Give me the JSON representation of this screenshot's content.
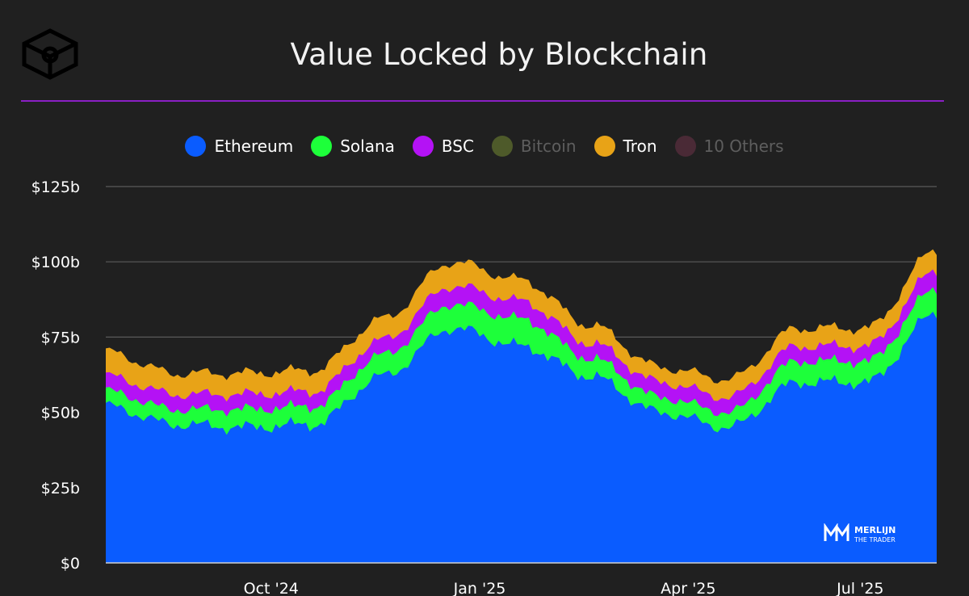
{
  "logo": {
    "icon": "cube-logo-icon"
  },
  "title": "Value Locked by Blockchain",
  "legend": [
    {
      "label": "Ethereum",
      "color": "#0a5cff",
      "active": true
    },
    {
      "label": "Solana",
      "color": "#1dff3a",
      "active": true
    },
    {
      "label": "BSC",
      "color": "#b412f5",
      "active": true
    },
    {
      "label": "Bitcoin",
      "color": "#4e5a2a",
      "active": false
    },
    {
      "label": "Tron",
      "color": "#e8a317",
      "active": true
    },
    {
      "label": "10 Others",
      "color": "#4a2a36",
      "active": false
    }
  ],
  "watermark": {
    "line1": "MERLIJN",
    "line2": "THE TRADER"
  },
  "chart_data": {
    "type": "area",
    "stacked": true,
    "title": "Value Locked by Blockchain",
    "x_range": [
      "2024-08",
      "2025-08"
    ],
    "x_ticks": [
      "Oct '24",
      "Jan '25",
      "Apr '25",
      "Jul '25"
    ],
    "y_ticks": [
      "$0",
      "$25b",
      "$50b",
      "$75b",
      "$100b",
      "$125b"
    ],
    "ylim": [
      0,
      125
    ],
    "y_unit": "$b",
    "grid": "horizontal",
    "legend_position": "top",
    "x": [
      "Aug '24",
      "Sep '24",
      "Oct '24",
      "Nov '24",
      "Dec '24",
      "Jan '25",
      "Feb '25",
      "Mar '25",
      "Apr '25",
      "May '25",
      "Jun '25",
      "Jul '25",
      "Aug '25"
    ],
    "series": [
      {
        "name": "Ethereum",
        "color": "#0a5cff",
        "values": [
          52,
          46,
          45,
          46,
          62,
          78,
          72,
          62,
          50,
          45,
          60,
          60,
          83
        ]
      },
      {
        "name": "Solana",
        "color": "#1dff3a",
        "values": [
          5,
          5,
          6,
          6,
          7,
          8,
          9,
          6,
          5,
          5,
          7,
          7,
          8
        ]
      },
      {
        "name": "BSC",
        "color": "#b412f5",
        "values": [
          5,
          5,
          5,
          5,
          5,
          6,
          6,
          5,
          5,
          5,
          5,
          5,
          6
        ]
      },
      {
        "name": "Tron",
        "color": "#e8a317",
        "values": [
          8,
          7,
          7,
          7,
          7,
          8,
          7,
          6,
          5,
          6,
          6,
          6,
          7
        ]
      }
    ]
  }
}
